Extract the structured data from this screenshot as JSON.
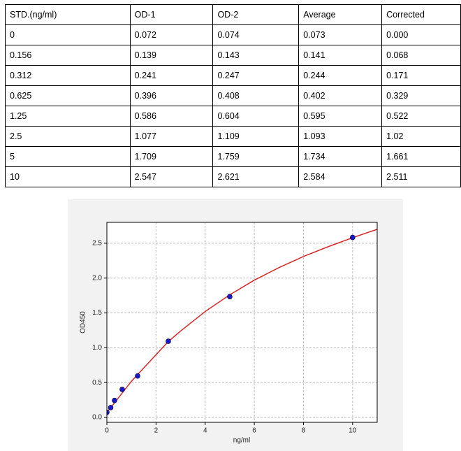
{
  "table": {
    "header": [
      "STD.(ng/ml)",
      "OD-1",
      "OD-2",
      "Average",
      "Corrected"
    ],
    "rows": [
      [
        "0",
        "0.072",
        "0.074",
        "0.073",
        "0.000"
      ],
      [
        "0.156",
        "0.139",
        "0.143",
        "0.141",
        "0.068"
      ],
      [
        "0.312",
        "0.241",
        "0.247",
        "0.244",
        "0.171"
      ],
      [
        "0.625",
        "0.396",
        "0.408",
        "0.402",
        "0.329"
      ],
      [
        "1.25",
        "0.586",
        "0.604",
        "0.595",
        "0.522"
      ],
      [
        "2.5",
        "1.077",
        "1.109",
        "1.093",
        "1.02"
      ],
      [
        "5",
        "1.709",
        "1.759",
        "1.734",
        "1.661"
      ],
      [
        "10",
        "2.547",
        "2.621",
        "2.584",
        "2.511"
      ]
    ]
  },
  "chart_data": {
    "type": "scatter",
    "x_label": "ng/ml",
    "y_label": "OD450",
    "xlim": [
      0,
      11
    ],
    "ylim": [
      -0.07,
      2.8
    ],
    "xticks": [
      0,
      2,
      4,
      6,
      8,
      10
    ],
    "yticks": [
      {
        "value": 0,
        "label": "0.0"
      },
      0.5,
      {
        "value": 1,
        "label": "1.0"
      },
      1.5,
      {
        "value": 2,
        "label": "2.0"
      },
      2.5
    ],
    "grid": true,
    "series": [
      {
        "x": [
          0,
          0.156,
          0.312,
          0.625,
          1.25,
          2.5,
          5,
          10
        ],
        "values": [
          0.073,
          0.141,
          0.244,
          0.402,
          0.595,
          1.093,
          1.734,
          2.584
        ],
        "color": "#1a1acc"
      },
      {
        "x": [
          0,
          1,
          2,
          2.5,
          3,
          4,
          5,
          6,
          7,
          8,
          9,
          10,
          11
        ],
        "values": [
          0.07,
          0.52,
          0.9,
          1.09,
          1.24,
          1.52,
          1.76,
          1.97,
          2.15,
          2.31,
          2.45,
          2.58,
          2.7
        ],
        "color": "#d62728",
        "line": true
      }
    ]
  }
}
